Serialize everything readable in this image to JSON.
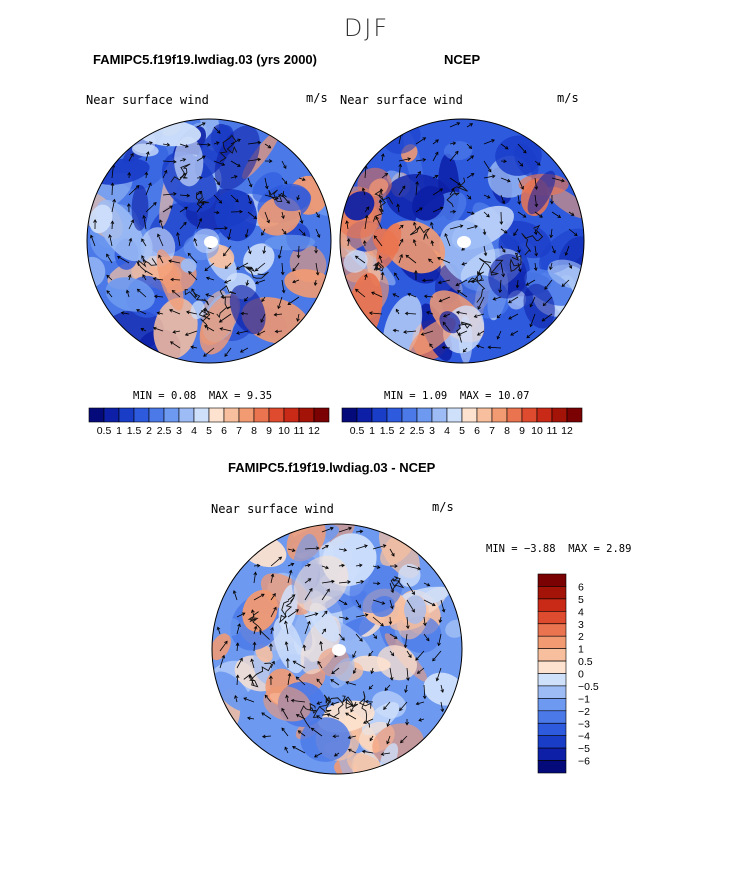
{
  "figure": {
    "season": "DJF"
  },
  "colors": {
    "abs_scale": [
      "#050a7a",
      "#0c1fa6",
      "#1a3dc8",
      "#2e5ade",
      "#4b79e8",
      "#6d99f0",
      "#9dbcf5",
      "#cfe0fb",
      "#fde2cf",
      "#f8bf9e",
      "#f29a72",
      "#ea7450",
      "#de4b2e",
      "#c82a17",
      "#a31308",
      "#7a0202"
    ],
    "diff_scale": [
      "#050a7a",
      "#0c1fa6",
      "#1a3dc8",
      "#2e5ade",
      "#4b79e8",
      "#6d99f0",
      "#9dbcf5",
      "#cfe0fb",
      "#fde2cf",
      "#f8bf9e",
      "#f29a72",
      "#ea7450",
      "#de4b2e",
      "#c82a17",
      "#a31308",
      "#7a0202"
    ]
  },
  "chart_data": [
    {
      "type": "heatmap",
      "projection": "polar-stereographic",
      "title": "FAMIPC5.f19f19.lwdiag.03 (yrs 2000)",
      "variable": "Near surface wind",
      "units": "m/s",
      "min_label": "MIN =",
      "min": "0.08",
      "max_label": "MAX =",
      "max": "9.35",
      "levels": [
        "0.5",
        "1",
        "1.5",
        "2",
        "2.5",
        "3",
        "4",
        "5",
        "6",
        "7",
        "8",
        "9",
        "10",
        "11",
        "12"
      ],
      "legend": "bottom-horizontal"
    },
    {
      "type": "heatmap",
      "projection": "polar-stereographic",
      "title": "NCEP",
      "variable": "Near surface wind",
      "units": "m/s",
      "min_label": "MIN =",
      "min": "1.09",
      "max_label": "MAX =",
      "max": "10.07",
      "levels": [
        "0.5",
        "1",
        "1.5",
        "2",
        "2.5",
        "3",
        "4",
        "5",
        "6",
        "7",
        "8",
        "9",
        "10",
        "11",
        "12"
      ],
      "legend": "bottom-horizontal"
    },
    {
      "type": "heatmap",
      "projection": "polar-stereographic",
      "title": "FAMIPC5.f19f19.lwdiag.03 - NCEP",
      "variable": "Near surface wind",
      "units": "m/s",
      "min_label": "MIN =",
      "min": "−3.88",
      "max_label": "MAX =",
      "max": "2.89",
      "levels": [
        "6",
        "5",
        "4",
        "3",
        "2",
        "1",
        "0.5",
        "0",
        "−0.5",
        "−1",
        "−2",
        "−3",
        "−4",
        "−5",
        "−6"
      ],
      "legend": "right-vertical"
    }
  ]
}
